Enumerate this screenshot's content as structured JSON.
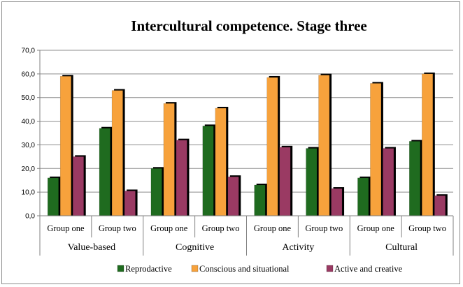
{
  "chart_data": {
    "type": "bar",
    "title": "Intercultural competence. Stage three",
    "xlabel": "",
    "ylabel": "",
    "ylim": [
      0,
      70
    ],
    "yticks": [
      "0,0",
      "10,0",
      "20,0",
      "30,0",
      "40,0",
      "50,0",
      "60,0",
      "70,0"
    ],
    "grid": true,
    "legend_position": "bottom",
    "groups": [
      "Value-based",
      "Cognitive",
      "Activity",
      "Cultural"
    ],
    "subcategories": [
      "Group one",
      "Group two"
    ],
    "categories": [
      "Group one",
      "Group two",
      "Group one",
      "Group two",
      "Group one",
      "Group two",
      "Group one",
      "Group two"
    ],
    "series": [
      {
        "name": "Reprodactive",
        "color": "#1f6b1f",
        "values": [
          16,
          37,
          20,
          38,
          13,
          28.5,
          16,
          31.5
        ]
      },
      {
        "name": "Conscious and situational",
        "color": "#f7a23c",
        "values": [
          59,
          53,
          47.5,
          45.5,
          58.5,
          59.5,
          56,
          60
        ]
      },
      {
        "name": "Active and creative",
        "color": "#9a3a63",
        "values": [
          25,
          10.5,
          32,
          16.5,
          29,
          11.5,
          28.5,
          8.5
        ]
      }
    ]
  }
}
